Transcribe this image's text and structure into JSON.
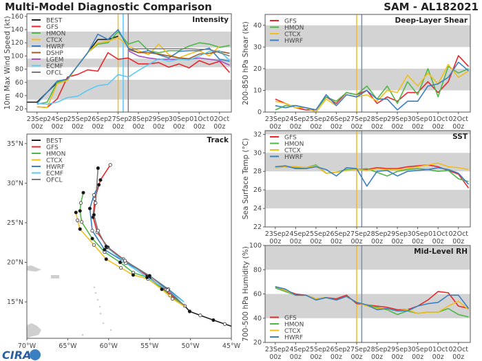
{
  "header": {
    "title": "Multi-Model Diagnostic Comparison",
    "storm": "SAM - AL182021"
  },
  "colors": {
    "BEST": "#1f1f1f",
    "GFS": "#e8262a",
    "HMON": "#4db849",
    "CTCX": "#f2bd1a",
    "HWRF": "#3a7fc1",
    "DSHP": "#9a5a2a",
    "LGEM": "#a652c4",
    "ECMF": "#5bc8f5",
    "OFCL": "#7a7a7a",
    "band": "#d3d3d3"
  },
  "times": [
    "09-22 12z",
    "09-23 00z",
    "09-23 12z",
    "09-24 00z",
    "09-24 12z",
    "09-25 00z",
    "09-25 12z",
    "09-26 00z",
    "09-26 12z",
    "09-27 00z",
    "09-27 12z",
    "09-28 00z",
    "09-28 12z",
    "09-29 00z",
    "09-29 12z",
    "09-30 00z",
    "09-30 12z",
    "10-01 00z",
    "10-01 12z",
    "10-02 00z",
    "10-02 12z"
  ],
  "xticks": [
    {
      "t": "09-23 00z",
      "day": "23Sep",
      "hour": "00z"
    },
    {
      "t": "09-24 00z",
      "day": "24Sep",
      "hour": "00z"
    },
    {
      "t": "09-25 00z",
      "day": "25Sep",
      "hour": "00z"
    },
    {
      "t": "09-26 00z",
      "day": "26Sep",
      "hour": "00z"
    },
    {
      "t": "09-27 00z",
      "day": "27Sep",
      "hour": "00z"
    },
    {
      "t": "09-28 00z",
      "day": "28Sep",
      "hour": "00z"
    },
    {
      "t": "09-29 00z",
      "day": "29Sep",
      "hour": "00z"
    },
    {
      "t": "09-30 00z",
      "day": "30Sep",
      "hour": "00z"
    },
    {
      "t": "10-01 00z",
      "day": "01Oct",
      "hour": "00z"
    },
    {
      "t": "10-02 00z",
      "day": "02Oct",
      "hour": "00z"
    }
  ],
  "xlim": [
    "09-22 12z",
    "10-02 14z"
  ],
  "chart_data": [
    {
      "id": "intensity",
      "type": "line",
      "title": "Intensity",
      "ylabel": "10m Max Wind Speed (kt)",
      "ylim": [
        15,
        164
      ],
      "yticks": [
        20,
        40,
        60,
        80,
        100,
        120,
        140,
        160
      ],
      "bands": [
        [
          34,
          64
        ],
        [
          83,
          96
        ],
        [
          113,
          137
        ]
      ],
      "legend": "top-left",
      "vlines": [
        {
          "t": "09-27 00z",
          "color": "#f2bd1a"
        },
        {
          "t": "09-27 06z",
          "color": "#5bc8f5"
        },
        {
          "t": "09-27 12z",
          "color": "#8a7a80"
        }
      ],
      "series": [
        {
          "name": "BEST",
          "values": [
            30,
            30,
            45,
            60,
            65,
            85,
            105,
            125,
            125,
            130,
            null,
            null,
            null,
            null,
            null,
            null,
            null,
            null,
            null,
            null,
            null
          ]
        },
        {
          "name": "GFS",
          "values": [
            null,
            23,
            22,
            35,
            68,
            72,
            79,
            77,
            105,
            95,
            97,
            88,
            88,
            90,
            83,
            88,
            82,
            93,
            87,
            92,
            75
          ]
        },
        {
          "name": "HMON",
          "values": [
            null,
            27,
            30,
            60,
            65,
            85,
            105,
            118,
            120,
            137,
            118,
            123,
            108,
            105,
            108,
            108,
            115,
            120,
            118,
            113,
            116
          ]
        },
        {
          "name": "CTCX",
          "values": [
            null,
            23,
            22,
            58,
            63,
            85,
            105,
            120,
            122,
            128,
            115,
            108,
            102,
            118,
            102,
            97,
            103,
            108,
            100,
            115,
            null
          ]
        },
        {
          "name": "HWRF",
          "values": [
            null,
            28,
            45,
            62,
            65,
            85,
            105,
            133,
            125,
            140,
            112,
            105,
            108,
            102,
            97,
            107,
            108,
            108,
            112,
            95,
            92
          ]
        },
        {
          "name": "DSHP",
          "values": [
            null,
            null,
            null,
            null,
            null,
            null,
            null,
            null,
            null,
            null,
            110,
            105,
            105,
            103,
            100,
            97,
            96,
            103,
            104,
            107,
            104
          ]
        },
        {
          "name": "LGEM",
          "values": [
            null,
            null,
            null,
            null,
            null,
            null,
            null,
            null,
            null,
            null,
            108,
            100,
            97,
            95,
            95,
            95,
            95,
            97,
            95,
            93,
            86
          ]
        },
        {
          "name": "ECMF",
          "values": [
            null,
            28,
            27,
            30,
            37,
            39,
            48,
            55,
            57,
            72,
            68,
            78,
            87,
            96,
            92,
            95,
            94,
            100,
            107,
            108,
            93
          ]
        },
        {
          "name": "OFCL",
          "values": [
            null,
            null,
            null,
            null,
            null,
            null,
            null,
            null,
            null,
            null,
            110,
            111,
            111,
            111,
            111,
            111,
            111,
            110,
            110,
            105,
            100
          ]
        }
      ]
    },
    {
      "id": "shear",
      "type": "line",
      "title": "Deep-Layer Shear",
      "ylabel": "200-850 hPa Shear (kt)",
      "ylim": [
        0,
        45
      ],
      "yticks": [
        0,
        10,
        20,
        30,
        40
      ],
      "bands": [
        [
          10,
          20
        ],
        [
          30,
          40
        ]
      ],
      "legend": "top-left",
      "vlines": [
        {
          "t": "09-27 00z",
          "color": "#f2bd1a"
        },
        {
          "t": "09-27 06z",
          "color": "#6f8fb0"
        }
      ],
      "series": [
        {
          "name": "GFS",
          "values": [
            null,
            6,
            4,
            2,
            1,
            1,
            7,
            4,
            9,
            8,
            10,
            4,
            7,
            5,
            9,
            9,
            14,
            9,
            14,
            26,
            21
          ]
        },
        {
          "name": "HMON",
          "values": [
            null,
            1,
            3,
            3,
            2,
            1,
            7,
            5,
            9,
            8,
            12,
            6,
            12,
            4,
            14,
            8,
            20,
            7,
            21,
            18,
            20
          ]
        },
        {
          "name": "CTCX",
          "values": [
            null,
            5,
            4,
            2,
            2,
            0,
            6,
            3,
            8,
            7,
            8,
            5,
            10,
            9,
            17,
            12,
            18,
            13,
            22,
            16,
            19
          ]
        },
        {
          "name": "HWRF",
          "values": [
            null,
            3,
            2,
            3,
            2,
            1,
            8,
            3,
            8,
            7,
            10,
            6,
            6,
            1,
            5,
            5,
            12,
            13,
            16,
            23,
            19
          ]
        }
      ]
    },
    {
      "id": "sst",
      "type": "line",
      "title": "SST",
      "ylabel": "Sea Surface Temp (°C)",
      "ylim": [
        22,
        32.4
      ],
      "yticks": [
        22,
        24,
        26,
        28,
        30,
        32
      ],
      "bands": [
        [
          24,
          26
        ],
        [
          28,
          30
        ],
        [
          32,
          34
        ]
      ],
      "legend": "top-left",
      "vlines": [
        {
          "t": "09-27 00z",
          "color": "#f2bd1a"
        },
        {
          "t": "09-27 06z",
          "color": "#6f8fb0"
        }
      ],
      "series": [
        {
          "name": "GFS",
          "values": [
            null,
            28.5,
            28.5,
            28.5,
            28.4,
            28.6,
            27.8,
            27.9,
            28.2,
            28.2,
            28.2,
            28.4,
            28.3,
            28.3,
            28.5,
            28.6,
            28.7,
            28.5,
            28.1,
            27.7,
            26.2
          ]
        },
        {
          "name": "HMON",
          "values": [
            null,
            28.4,
            28.5,
            28.4,
            28.4,
            28.7,
            27.8,
            27.9,
            28.2,
            28.2,
            28.3,
            27.9,
            27.5,
            28.0,
            28.2,
            28.3,
            28.2,
            28.0,
            28.1,
            27.2,
            26.9
          ]
        },
        {
          "name": "CTCX",
          "values": [
            null,
            28.4,
            28.5,
            28.5,
            28.4,
            28.6,
            27.8,
            27.9,
            28.1,
            28.2,
            28.1,
            28.3,
            28.2,
            28.2,
            28.3,
            28.5,
            28.7,
            28.9,
            28.5,
            28.4,
            28.2
          ]
        },
        {
          "name": "HWRF",
          "values": [
            null,
            28.5,
            28.6,
            28.3,
            28.3,
            28.5,
            28.2,
            27.5,
            28.4,
            28.3,
            26.4,
            28.0,
            28.1,
            27.5,
            28.0,
            28.1,
            28.2,
            28.4,
            28.2,
            27.8,
            26.6
          ]
        }
      ]
    },
    {
      "id": "rh",
      "type": "line",
      "title": "Mid-Level RH",
      "ylabel": "700-500 hPa Humidity (%)",
      "ylim": [
        20,
        100
      ],
      "yticks": [
        20,
        40,
        60,
        80,
        100
      ],
      "bands": [
        [
          40,
          60
        ],
        [
          80,
          100
        ]
      ],
      "legend": "bottom-left",
      "vlines": [
        {
          "t": "09-27 00z",
          "color": "#f2bd1a"
        },
        {
          "t": "09-27 06z",
          "color": "#6f8fb0"
        }
      ],
      "series": [
        {
          "name": "GFS",
          "values": [
            null,
            66,
            63,
            60,
            59,
            56,
            57,
            56,
            59,
            52,
            51,
            50,
            49,
            47,
            47,
            50,
            55,
            62,
            61,
            50,
            48
          ]
        },
        {
          "name": "HMON",
          "values": [
            null,
            65,
            62,
            59,
            59,
            56,
            57,
            55,
            58,
            53,
            51,
            49,
            47,
            43,
            46,
            44,
            45,
            45,
            48,
            43,
            41
          ]
        },
        {
          "name": "CTCX",
          "values": [
            null,
            66,
            63,
            59,
            59,
            56,
            57,
            55,
            58,
            53,
            50,
            48,
            48,
            46,
            47,
            44,
            45,
            45,
            50,
            54,
            47
          ]
        },
        {
          "name": "HWRF",
          "values": [
            null,
            66,
            64,
            59,
            59,
            55,
            57,
            55,
            58,
            53,
            51,
            47,
            48,
            46,
            46,
            50,
            52,
            53,
            59,
            59,
            48
          ]
        }
      ]
    },
    {
      "id": "track",
      "type": "line",
      "title": "Track",
      "xlim": [
        -70,
        -45
      ],
      "ylim": [
        10.4,
        36.2
      ],
      "xticks": [
        {
          "v": -70,
          "label": "70°W"
        },
        {
          "v": -65,
          "label": "65°W"
        },
        {
          "v": -60,
          "label": "60°W"
        },
        {
          "v": -55,
          "label": "55°W"
        },
        {
          "v": -50,
          "label": "50°W"
        },
        {
          "v": -45,
          "label": "45°W"
        }
      ],
      "yticks": [
        {
          "v": 15,
          "label": "15°N"
        },
        {
          "v": 20,
          "label": "20°N"
        },
        {
          "v": 25,
          "label": "25°N"
        },
        {
          "v": 30,
          "label": "30°N"
        },
        {
          "v": 35,
          "label": "35°N"
        }
      ],
      "legend": "top-left",
      "series": [
        {
          "name": "BEST",
          "points": [
            [
              -44.9,
              11.9
            ],
            [
              -45.8,
              12.2
            ],
            [
              -47.2,
              12.7
            ],
            [
              -48.8,
              13.3
            ],
            [
              -50.1,
              13.8
            ],
            [
              -50.7,
              14.5
            ]
          ]
        },
        {
          "name": "GFS",
          "points": [
            [
              -50.7,
              14.5
            ],
            [
              -53.0,
              16.4
            ],
            [
              -55.3,
              18.3
            ],
            [
              -58.2,
              20.4
            ],
            [
              -60.1,
              21.9
            ],
            [
              -61.4,
              23.8
            ],
            [
              -61.9,
              25.7
            ],
            [
              -61.7,
              28.0
            ],
            [
              -61.0,
              30.4
            ],
            [
              -59.8,
              32.3
            ]
          ]
        },
        {
          "name": "HMON",
          "points": [
            [
              -50.7,
              14.5
            ],
            [
              -52.5,
              15.8
            ],
            [
              -55.0,
              18.0
            ],
            [
              -57.0,
              18.7
            ],
            [
              -58.6,
              20.0
            ],
            [
              -60.5,
              21.3
            ],
            [
              -62.0,
              23.0
            ],
            [
              -63.3,
              25.1
            ],
            [
              -63.5,
              26.5
            ],
            [
              -63.4,
              27.5
            ],
            [
              -63.1,
              28.8
            ]
          ]
        },
        {
          "name": "CTCX",
          "points": [
            [
              -50.7,
              14.4
            ],
            [
              -52.2,
              15.4
            ],
            [
              -53.5,
              16.6
            ],
            [
              -55.2,
              17.9
            ],
            [
              -57.0,
              18.4
            ],
            [
              -58.5,
              19.3
            ],
            [
              -60.3,
              20.4
            ],
            [
              -61.8,
              22.2
            ],
            [
              -63.5,
              24.2
            ],
            [
              -63.8,
              25.3
            ],
            [
              -64.0,
              26.3
            ]
          ]
        },
        {
          "name": "HWRF",
          "points": [
            [
              -50.8,
              15.0
            ],
            [
              -52.7,
              16.6
            ],
            [
              -55.0,
              18.3
            ],
            [
              -58.3,
              20.2
            ],
            [
              -60.5,
              21.6
            ],
            [
              -62.0,
              24.0
            ],
            [
              -62.3,
              26.8
            ],
            [
              -61.8,
              28.5
            ],
            [
              -61.2,
              29.8
            ]
          ]
        },
        {
          "name": "ECMF",
          "points": [
            [
              -50.8,
              15.0
            ],
            [
              -53.0,
              16.6
            ],
            [
              -55.3,
              18.1
            ],
            [
              -57.9,
              19.9
            ],
            [
              -60.2,
              21.9
            ]
          ]
        },
        {
          "name": "OFCL",
          "points": [
            [
              -50.7,
              14.5
            ],
            [
              -52.8,
              16.5
            ],
            [
              -55.0,
              18.3
            ],
            [
              -58.0,
              20.2
            ],
            [
              -60.3,
              22.0
            ],
            [
              -61.3,
              24.0
            ],
            [
              -61.8,
              26.0
            ],
            [
              -61.6,
              27.5
            ],
            [
              -61.3,
              31.9
            ]
          ]
        }
      ]
    }
  ],
  "logo": {
    "text": "CIRA"
  }
}
